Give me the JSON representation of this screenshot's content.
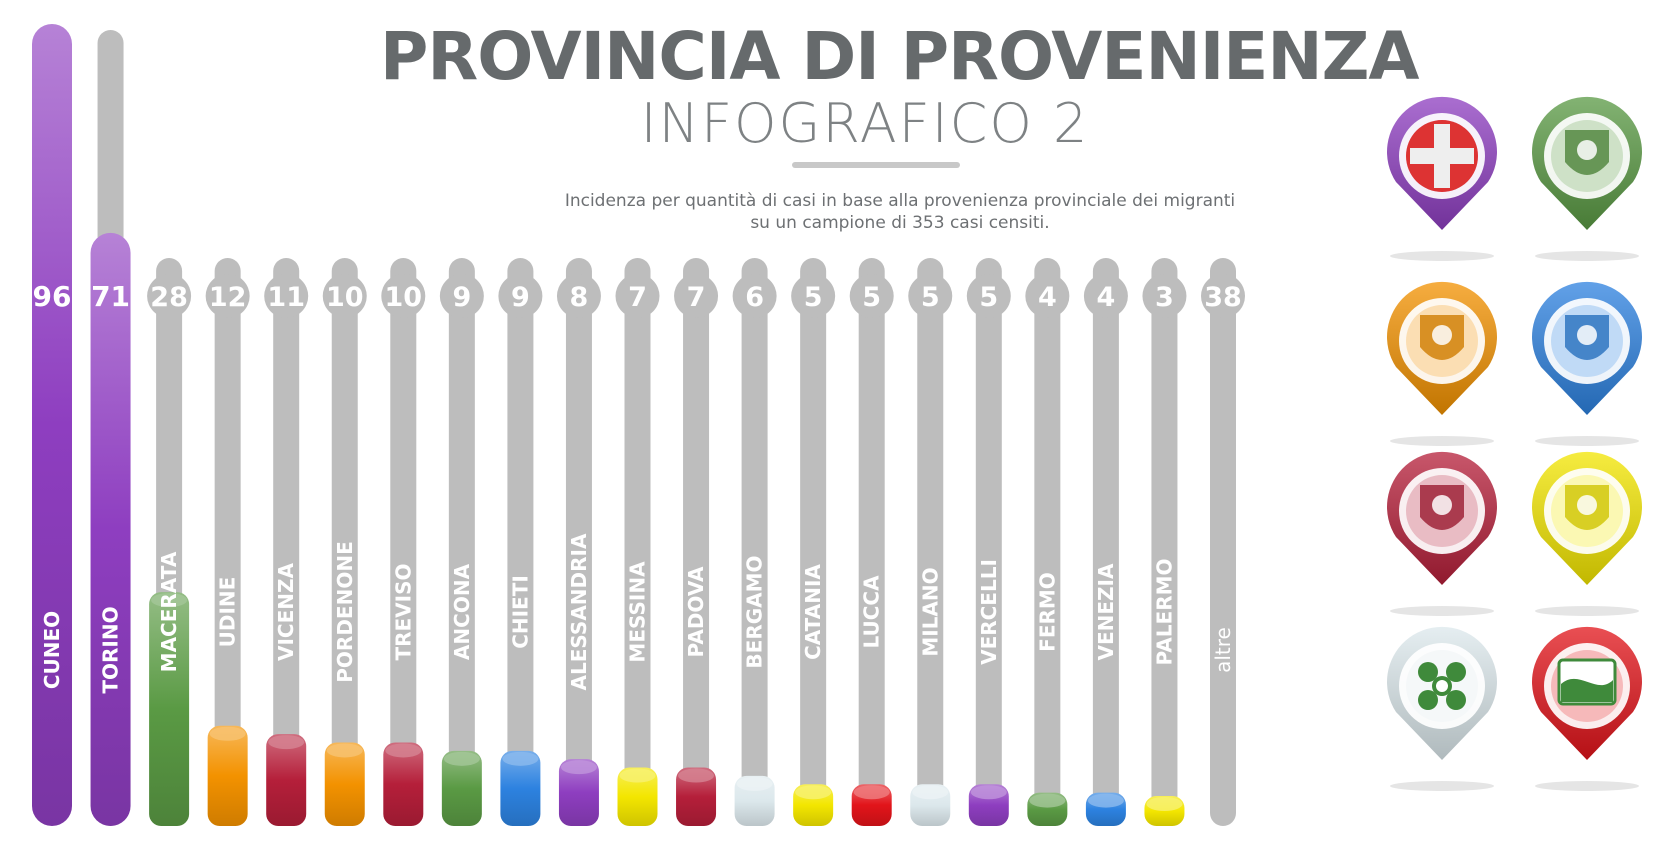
{
  "header": {
    "title": "PROVINCIA DI PROVENIENZA",
    "subtitle": "INFOGRAFICO 2",
    "description_line1": "Incidenza per quantità di casi in base alla provenienza provinciale dei migranti",
    "description_line2": "su un campione di 353 casi censiti."
  },
  "chart_data": {
    "type": "bar",
    "title": "PROVINCIA DI PROVENIENZA",
    "subtitle": "INFOGRAFICO 2",
    "categories": [
      "CUNEO",
      "TORINO",
      "MACERATA",
      "UDINE",
      "VICENZA",
      "PORDENONE",
      "TREVISO",
      "ANCONA",
      "CHIETI",
      "ALESSANDRIA",
      "MESSINA",
      "PADOVA",
      "BERGAMO",
      "CATANIA",
      "LUCCA",
      "MILANO",
      "VERCELLI",
      "FERMO",
      "VENEZIA",
      "PALERMO",
      "altre"
    ],
    "values": [
      96,
      71,
      28,
      12,
      11,
      10,
      10,
      9,
      9,
      8,
      7,
      7,
      6,
      5,
      5,
      5,
      5,
      4,
      4,
      3,
      38
    ],
    "sample_size": 353,
    "bar_colors": [
      "#8e3ec0",
      "#8e3ec0",
      "#5a9a44",
      "#f39200",
      "#b51f3a",
      "#f39200",
      "#b51f3a",
      "#5a9a44",
      "#2d82e0",
      "#8e3ec0",
      "#f3e600",
      "#b51f3a",
      "#dce8ec",
      "#f3e600",
      "#e2141a",
      "#dce8ec",
      "#8e3ec0",
      "#5a9a44",
      "#2d82e0",
      "#f3e600",
      "#bdbdbd"
    ],
    "legend": [
      {
        "region_icon": "piemonte-coat-of-arms",
        "color": "#8e3ec0"
      },
      {
        "region_icon": "marche-coat-of-arms",
        "color": "#5a9a44"
      },
      {
        "region_icon": "friuli-eagle-coat-of-arms",
        "color": "#f39200"
      },
      {
        "region_icon": "abruzzo-coat-of-arms",
        "color": "#2d82e0"
      },
      {
        "region_icon": "veneto-lion-coat-of-arms",
        "color": "#b51f3a"
      },
      {
        "region_icon": "sicilia-trinacria-coat-of-arms",
        "color": "#f3e600"
      },
      {
        "region_icon": "lombardia-rose-coat-of-arms",
        "color": "#dce8ec"
      },
      {
        "region_icon": "toscana-coat-of-arms",
        "color": "#e2141a"
      }
    ]
  }
}
